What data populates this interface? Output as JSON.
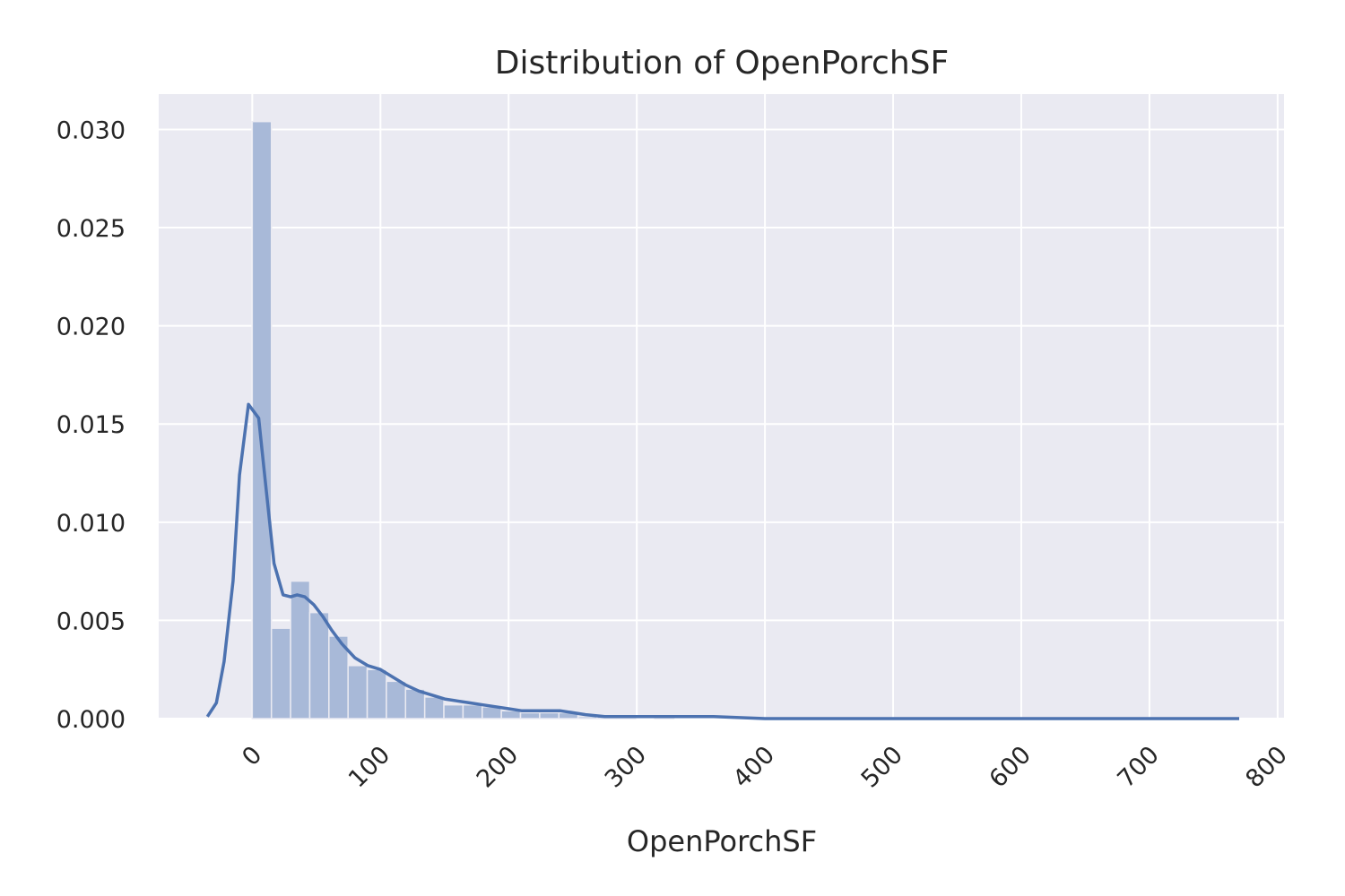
{
  "chart_data": {
    "type": "bar",
    "title": "Distribution of OpenPorchSF",
    "xlabel": "OpenPorchSF",
    "ylabel": "",
    "xlim": [
      -73,
      805
    ],
    "ylim": [
      0,
      0.0318
    ],
    "xticks": [
      0,
      100,
      200,
      300,
      400,
      500,
      600,
      700,
      800
    ],
    "xtick_labels": [
      "0",
      "100",
      "200",
      "300",
      "400",
      "500",
      "600",
      "700",
      "800"
    ],
    "yticks": [
      0,
      0.005,
      0.01,
      0.015,
      0.02,
      0.025,
      0.03
    ],
    "ytick_labels": [
      "0.000",
      "0.005",
      "0.010",
      "0.015",
      "0.020",
      "0.025",
      "0.030"
    ],
    "grid": true,
    "histogram": {
      "bin_edges": [
        0,
        14.95,
        29.9,
        44.85,
        59.8,
        74.75,
        89.7,
        104.65,
        119.6,
        134.55,
        149.5,
        164.45,
        179.4,
        194.35,
        209.3,
        224.25,
        239.2,
        254.15,
        269.1,
        284.05,
        299.0,
        313.95,
        328.9,
        343.85,
        358.8,
        373.75,
        388.7,
        403.65,
        418.6,
        433.55,
        448.5,
        463.45,
        478.4,
        493.35,
        508.3,
        523.25,
        538.2,
        553.15,
        568.1,
        583.05,
        598.0,
        612.95,
        627.9,
        642.85,
        657.8,
        672.75,
        687.7,
        702.65,
        717.6,
        732.55,
        747.5
      ],
      "densities": [
        0.0304,
        0.0046,
        0.007,
        0.0054,
        0.0042,
        0.0027,
        0.0025,
        0.0019,
        0.0015,
        0.0011,
        0.0007,
        0.0007,
        0.0006,
        0.0004,
        0.0003,
        0.0003,
        0.0003,
        0.0001,
        0.0001,
        0.0001,
        0.0,
        0.0001,
        0.0,
        0.0,
        0.0,
        0.0,
        0.0,
        0.0,
        0.0,
        0.0,
        0.0,
        0.0,
        0.0,
        0.0,
        0.0,
        0.0,
        0.0,
        0.0,
        0.0,
        0.0,
        0.0,
        0.0,
        0.0,
        0.0,
        0.0,
        0.0,
        0.0,
        0.0,
        0.0,
        0.0
      ]
    },
    "series": [
      {
        "type": "line",
        "x": [
          -35,
          -28,
          -22,
          -15,
          -10,
          -3,
          5,
          10,
          17,
          24,
          30,
          35,
          41,
          48,
          55,
          62,
          70,
          80,
          90,
          100,
          110,
          120,
          130,
          140,
          150,
          160,
          170,
          180,
          190,
          200,
          210,
          220,
          230,
          240,
          250,
          260,
          275,
          300,
          330,
          360,
          400,
          450,
          500,
          550,
          600,
          650,
          700,
          770
        ],
        "y": [
          0.0001,
          0.0008,
          0.0029,
          0.007,
          0.0124,
          0.016,
          0.0153,
          0.0122,
          0.0079,
          0.0063,
          0.0062,
          0.0063,
          0.0062,
          0.0058,
          0.0052,
          0.0045,
          0.0038,
          0.0031,
          0.0027,
          0.0025,
          0.0021,
          0.0017,
          0.0014,
          0.0012,
          0.001,
          0.0009,
          0.0008,
          0.0007,
          0.0006,
          0.0005,
          0.0004,
          0.0004,
          0.0004,
          0.0004,
          0.0003,
          0.0002,
          0.0001,
          0.0001,
          0.0001,
          0.0001,
          0.0,
          0.0,
          0.0,
          0.0,
          0.0,
          0.0,
          0.0,
          0.0
        ]
      }
    ],
    "colors": {
      "plot_background": "#eaeaf2",
      "grid": "#ffffff",
      "bar_fill": "#a8b9d8",
      "line": "#4c72b0",
      "text": "#262626"
    }
  }
}
